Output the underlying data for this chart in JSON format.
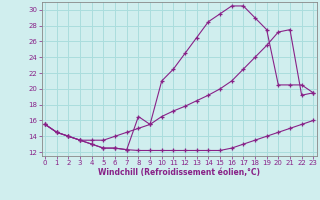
{
  "xlabel": "Windchill (Refroidissement éolien,°C)",
  "xlim": [
    -0.3,
    23.3
  ],
  "ylim": [
    11.5,
    31.0
  ],
  "yticks": [
    12,
    14,
    16,
    18,
    20,
    22,
    24,
    26,
    28,
    30
  ],
  "xticks": [
    0,
    1,
    2,
    3,
    4,
    5,
    6,
    7,
    8,
    9,
    10,
    11,
    12,
    13,
    14,
    15,
    16,
    17,
    18,
    19,
    20,
    21,
    22,
    23
  ],
  "bg_color": "#d0eeee",
  "line_color": "#882288",
  "grid_color": "#aadddd",
  "line1_x": [
    0,
    1,
    2,
    3,
    4,
    5,
    6,
    7,
    8,
    9,
    10,
    11,
    12,
    13,
    14,
    15,
    16,
    17,
    18,
    19,
    20,
    21,
    22,
    23
  ],
  "line1_y": [
    15.5,
    14.5,
    14.0,
    13.5,
    13.0,
    12.5,
    12.5,
    12.3,
    12.2,
    12.2,
    12.2,
    12.2,
    12.2,
    12.2,
    12.2,
    12.2,
    12.5,
    13.0,
    13.5,
    14.0,
    14.5,
    15.0,
    15.5,
    16.0
  ],
  "line2_x": [
    0,
    1,
    2,
    3,
    4,
    5,
    6,
    7,
    8,
    9,
    10,
    11,
    12,
    13,
    14,
    15,
    16,
    17,
    18,
    19,
    20,
    21,
    22,
    23
  ],
  "line2_y": [
    15.5,
    14.5,
    14.0,
    13.5,
    13.0,
    12.5,
    12.5,
    12.3,
    16.5,
    15.5,
    21.0,
    22.5,
    24.5,
    26.5,
    28.5,
    29.5,
    30.5,
    30.5,
    29.0,
    27.5,
    20.5,
    20.5,
    20.5,
    19.5
  ],
  "line3_x": [
    0,
    1,
    2,
    3,
    4,
    5,
    6,
    7,
    8,
    9,
    10,
    11,
    12,
    13,
    14,
    15,
    16,
    17,
    18,
    19,
    20,
    21,
    22,
    23
  ],
  "line3_y": [
    15.5,
    14.5,
    14.0,
    13.5,
    13.5,
    13.5,
    14.0,
    14.5,
    15.0,
    15.5,
    16.5,
    17.2,
    17.8,
    18.5,
    19.2,
    20.0,
    21.0,
    22.5,
    24.0,
    25.5,
    27.2,
    27.5,
    19.2,
    19.5
  ]
}
